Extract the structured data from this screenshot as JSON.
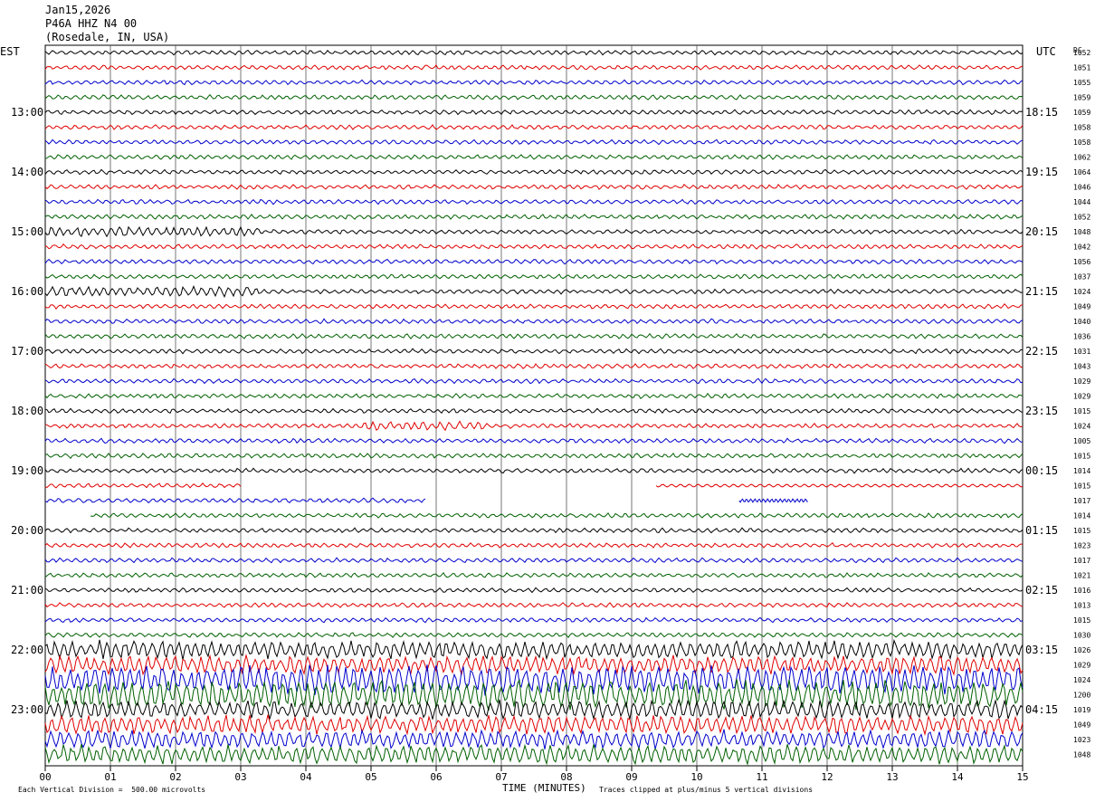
{
  "header": {
    "date": "Jan15,2026",
    "channel": "P46A HHZ N4 00",
    "location": "(Rosedale, IN, USA)"
  },
  "chart_data": {
    "type": "line",
    "plot": "helicorder",
    "left_timezone": "EST",
    "right_timezone": "UTC",
    "right_corner_label": "DC",
    "xlabel": "TIME (MINUTES)",
    "x_ticks": [
      "00",
      "01",
      "02",
      "03",
      "04",
      "05",
      "06",
      "07",
      "08",
      "09",
      "10",
      "11",
      "12",
      "13",
      "14",
      "15"
    ],
    "xlim": [
      0,
      15
    ],
    "left_hour_labels": [
      "13:00",
      "14:00",
      "15:00",
      "16:00",
      "17:00",
      "18:00",
      "19:00",
      "20:00",
      "21:00",
      "22:00",
      "23:00"
    ],
    "right_hour_labels": [
      "18:15",
      "19:15",
      "20:15",
      "21:15",
      "22:15",
      "23:15",
      "00:15",
      "01:15",
      "02:15",
      "03:15",
      "04:15"
    ],
    "trace_colors": [
      "#000000",
      "#e00000",
      "#0000cc",
      "#006000"
    ],
    "dc_offsets": [
      "1052",
      "1051",
      "1055",
      "1059",
      "1059",
      "1058",
      "1058",
      "1062",
      "1064",
      "1046",
      "1044",
      "1052",
      "1048",
      "1042",
      "1056",
      "1037",
      "1024",
      "1049",
      "1040",
      "1036",
      "1031",
      "1043",
      "1029",
      "1029",
      "1015",
      "1024",
      "1005",
      "1015",
      "1014",
      "1015",
      "1017",
      "1014",
      "1015",
      "1023",
      "1017",
      "1021",
      "1016",
      "1013",
      "1015",
      "1030",
      "1026",
      "1029",
      "1024",
      "1200",
      "1019",
      "1049",
      "1023",
      "1048"
    ],
    "footer_scale": "Each Vertical Division =  500.00 microvolts",
    "footer_clip": "Traces clipped at plus/minus 5 vertical divisions",
    "grid": "vertical lines each minute"
  }
}
